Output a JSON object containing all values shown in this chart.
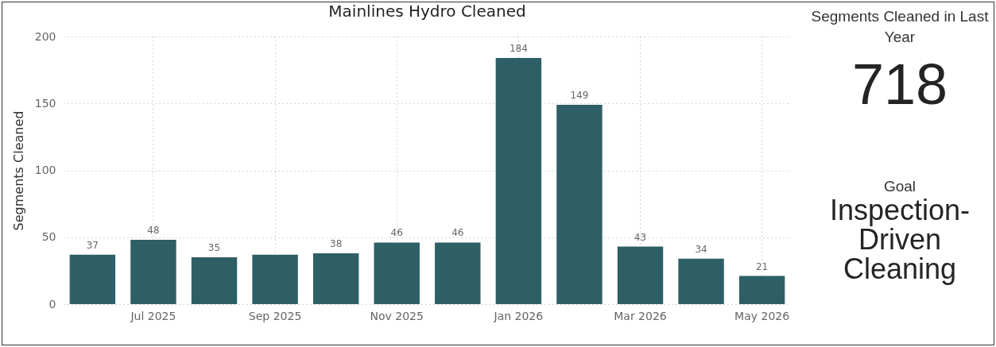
{
  "chart_data": [
    {
      "type": "bar",
      "title": "Mainlines Hydro Cleaned",
      "ylabel": "Segments Cleaned",
      "categories": [
        null,
        "Jul 2025",
        null,
        "Sep 2025",
        null,
        "Nov 2025",
        null,
        "Jan 2026",
        null,
        "Mar 2026",
        null,
        "May 2026"
      ],
      "values": [
        37,
        48,
        35,
        37,
        38,
        46,
        46,
        184,
        149,
        43,
        34,
        21
      ],
      "value_labels": [
        "37",
        "48",
        "35",
        null,
        "38",
        "46",
        "46",
        "184",
        "149",
        "43",
        "34",
        "21"
      ],
      "color": "#2e5f66",
      "ylim": [
        0,
        200
      ],
      "yticks": [
        0,
        50,
        100,
        150,
        200
      ],
      "grid": true
    },
    {
      "type": "other",
      "title": "Segments Cleaned in Last Year",
      "annotations": [
        "718",
        "Goal",
        "Inspection-Driven Cleaning"
      ]
    }
  ]
}
